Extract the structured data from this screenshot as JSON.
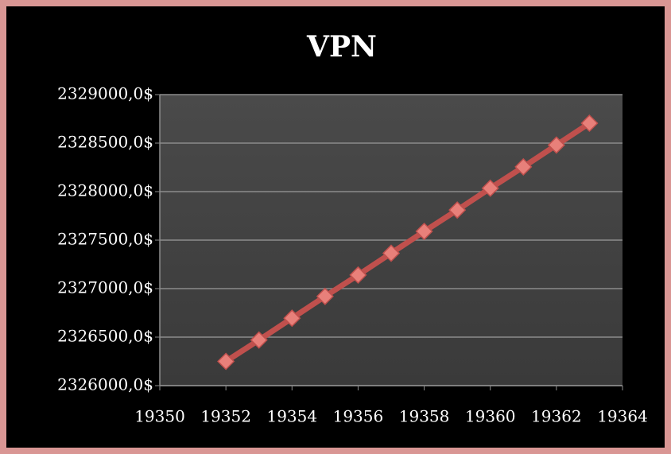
{
  "chart_data": {
    "type": "line",
    "title": "VPN",
    "x": [
      19352,
      19353,
      19354,
      19355,
      19356,
      19357,
      19358,
      19359,
      19360,
      19361,
      19362,
      19363
    ],
    "series": [
      {
        "name": "VPN",
        "color": "#c0504d",
        "marker_color": "#e8807a",
        "values": [
          2326250,
          2326470,
          2326695,
          2326920,
          2327140,
          2327365,
          2327590,
          2327810,
          2328035,
          2328255,
          2328480,
          2328705
        ]
      }
    ],
    "xlim": [
      19350,
      19364
    ],
    "xticks": [
      19350,
      19352,
      19354,
      19356,
      19358,
      19360,
      19362,
      19364
    ],
    "ylim": [
      2326000,
      2329000
    ],
    "yticks": [
      {
        "value": 2326000,
        "label": "2326000,0$"
      },
      {
        "value": 2326500,
        "label": "2326500,0$"
      },
      {
        "value": 2327000,
        "label": "2327000,0$"
      },
      {
        "value": 2327500,
        "label": "2327500,0$"
      },
      {
        "value": 2328000,
        "label": "2328000,0$"
      },
      {
        "value": 2328500,
        "label": "2328500,0$"
      },
      {
        "value": 2329000,
        "label": "2329000,0$"
      }
    ],
    "grid": true
  }
}
